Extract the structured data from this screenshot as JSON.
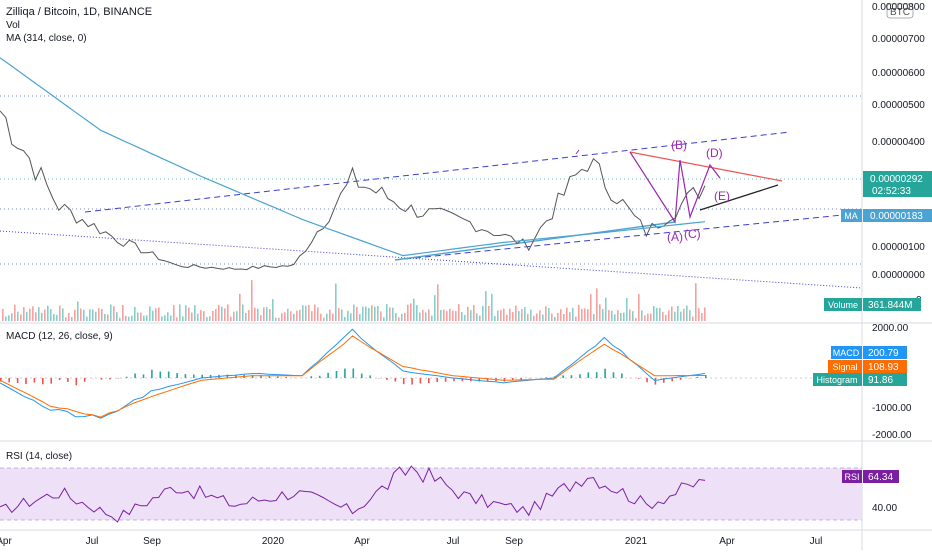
{
  "header": {
    "title": "Zilliqa / Bitcoin, 1D, BINANCE",
    "vol": "Vol",
    "ma": "MA (314, close, 0)",
    "currency": "BTC"
  },
  "price_axis": [
    "0.00000800",
    "0.00000700",
    "0.00000600",
    "0.00000500",
    "0.00000400",
    "0.00000100",
    "0.00000000"
  ],
  "badges": {
    "price": "0.00000292",
    "countdown": "02:52:33",
    "ma_label": "MA",
    "ma_value": "0.00000183",
    "volume_label": "Volume",
    "volume_value": "361.844M",
    "vol_partial_tick": "0",
    "macd_label": "MACD",
    "macd_value": "200.79",
    "signal_label": "Signal",
    "signal_value": "108.93",
    "hist_label": "Histogram",
    "hist_value": "91.86",
    "rsi_label": "RSI",
    "rsi_value": "64.34"
  },
  "macd": {
    "title": "MACD (12, 26, close, 9)",
    "axis": [
      "2000.00",
      "-1000.00",
      "-2000.00"
    ]
  },
  "rsi": {
    "title": "RSI (14, close)",
    "axis": [
      "40.00"
    ]
  },
  "wave_labels": [
    "(A)",
    "(B)",
    "(C)",
    "(D)",
    "(E)"
  ],
  "time_axis": [
    "Apr",
    "Jul",
    "Sep",
    "2020",
    "Apr",
    "Jul",
    "Sep",
    "2021",
    "Apr",
    "Jul"
  ],
  "colors": {
    "up": "#26a69a",
    "down": "#ef5350",
    "ma": "#4ba3d3",
    "trend": "#3d3dd6",
    "wave": "#9c27b0",
    "macd": "#2196f3",
    "signal": "#ff6d00",
    "rsi": "#7b1fa2",
    "rsi_band": "#ede0f7"
  },
  "chart_data": [
    {
      "type": "line",
      "series": [
        {
          "name": "Zilliqa / Bitcoin",
          "x": [
            "Apr 2019",
            "Jun 2019",
            "Jul 2019",
            "Sep 2019",
            "2020",
            "Apr 2020",
            "Jun 2020",
            "Jul 2020",
            "Sep 2020",
            "Oct 2020",
            "2021",
            "Feb 2021",
            "Mar 2021"
          ],
          "values": [
            5.2e-06,
            2.3e-06,
            1.3e-06,
            5e-07,
            4e-07,
            5e-07,
            3.1e-06,
            2.2e-06,
            1.8e-06,
            1.1e-06,
            3.7e-06,
            1.5e-06,
            2.92e-06
          ]
        },
        {
          "name": "MA",
          "x": [
            "Apr 2019",
            "Jul 2019",
            "Sep 2019",
            "2020",
            "Apr 2020",
            "Oct 2020",
            "2021",
            "Mar 2021"
          ],
          "values": [
            6.8e-06,
            4.6e-06,
            3.2e-06,
            1.9e-06,
            8e-07,
            1.2e-06,
            1.5e-06,
            1.83e-06
          ]
        }
      ],
      "ylim": [
        0,
        8.4e-06
      ]
    },
    {
      "type": "line",
      "title": "MACD (12, 26, close, 9)",
      "series": [
        {
          "name": "MACD",
          "values": [
            -200,
            -1400,
            -1800,
            -600,
            0,
            200,
            100,
            2000,
            300,
            0,
            -200,
            0,
            1800,
            -100,
            200.79
          ]
        },
        {
          "name": "Signal",
          "values": [
            -100,
            -1200,
            -1700,
            -800,
            -100,
            100,
            100,
            1800,
            500,
            100,
            -100,
            -50,
            1500,
            100,
            108.93
          ]
        },
        {
          "name": "Histogram",
          "values": [
            91.86
          ]
        }
      ]
    },
    {
      "type": "line",
      "title": "RSI (14, close)",
      "series": [
        {
          "name": "RSI",
          "values": [
            40,
            55,
            35,
            60,
            45,
            55,
            40,
            75,
            50,
            40,
            70,
            45,
            64.34
          ]
        }
      ],
      "ylim": [
        25,
        90
      ]
    }
  ]
}
